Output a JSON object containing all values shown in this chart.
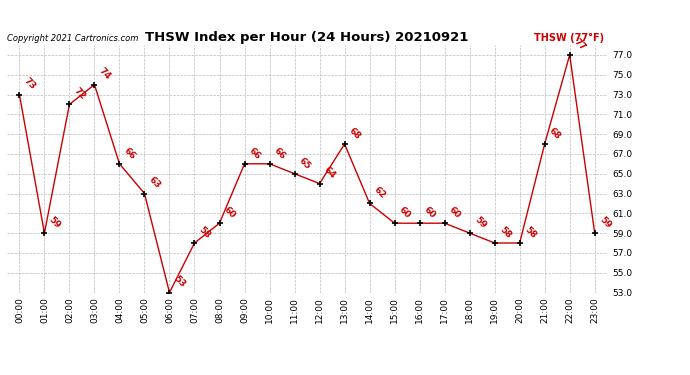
{
  "title": "THSW Index per Hour (24 Hours) 20210921",
  "copyright": "Copyright 2021 Cartronics.com",
  "legend_label": "THSW (77°F)",
  "hours": [
    "00:00",
    "01:00",
    "02:00",
    "03:00",
    "04:00",
    "05:00",
    "06:00",
    "07:00",
    "08:00",
    "09:00",
    "10:00",
    "11:00",
    "12:00",
    "13:00",
    "14:00",
    "15:00",
    "16:00",
    "17:00",
    "18:00",
    "19:00",
    "20:00",
    "21:00",
    "22:00",
    "23:00"
  ],
  "values": [
    73,
    59,
    72,
    74,
    66,
    63,
    53,
    58,
    60,
    66,
    66,
    65,
    64,
    68,
    62,
    60,
    60,
    60,
    59,
    58,
    58,
    68,
    77,
    59
  ],
  "line_color": "#cc0000",
  "marker_color": "#000000",
  "label_color": "#cc0000",
  "title_color": "#000000",
  "copyright_color": "#000000",
  "legend_color": "#cc0000",
  "bg_color": "#ffffff",
  "grid_color": "#bbbbbb",
  "ylim_min": 53.0,
  "ylim_max": 78.0,
  "ytick_step": 2.0
}
